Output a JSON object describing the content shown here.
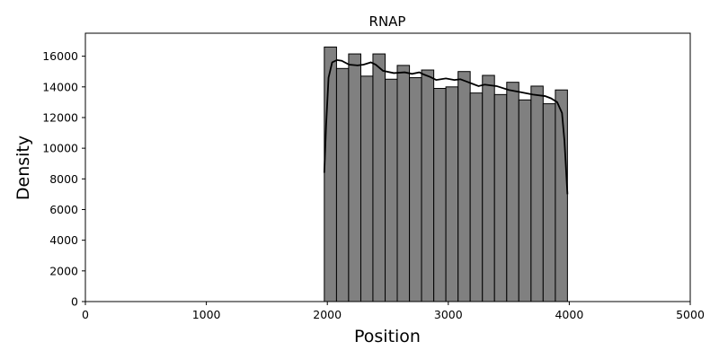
{
  "chart_data": {
    "type": "bar",
    "title": "RNAP",
    "xlabel": "Position",
    "ylabel": "Density",
    "xlim": [
      0,
      5000
    ],
    "ylim": [
      0,
      17500
    ],
    "xticks": [
      0,
      1000,
      2000,
      3000,
      4000,
      5000
    ],
    "yticks": [
      0,
      2000,
      4000,
      6000,
      8000,
      10000,
      12000,
      14000,
      16000
    ],
    "grid": false,
    "bar_color": "#808080",
    "edge_color": "#000000",
    "kde_color": "#000000",
    "bins": [
      {
        "x0": 1975,
        "x1": 2076,
        "value": 16600
      },
      {
        "x0": 2076,
        "x1": 2176,
        "value": 15200
      },
      {
        "x0": 2176,
        "x1": 2277,
        "value": 16150
      },
      {
        "x0": 2277,
        "x1": 2377,
        "value": 14700
      },
      {
        "x0": 2377,
        "x1": 2478,
        "value": 16150
      },
      {
        "x0": 2478,
        "x1": 2578,
        "value": 14500
      },
      {
        "x0": 2578,
        "x1": 2679,
        "value": 15400
      },
      {
        "x0": 2679,
        "x1": 2779,
        "value": 14600
      },
      {
        "x0": 2779,
        "x1": 2880,
        "value": 15100
      },
      {
        "x0": 2880,
        "x1": 2980,
        "value": 13900
      },
      {
        "x0": 2980,
        "x1": 3081,
        "value": 14000
      },
      {
        "x0": 3081,
        "x1": 3181,
        "value": 15000
      },
      {
        "x0": 3181,
        "x1": 3282,
        "value": 13600
      },
      {
        "x0": 3282,
        "x1": 3382,
        "value": 14750
      },
      {
        "x0": 3382,
        "x1": 3483,
        "value": 13500
      },
      {
        "x0": 3483,
        "x1": 3583,
        "value": 14300
      },
      {
        "x0": 3583,
        "x1": 3684,
        "value": 13150
      },
      {
        "x0": 3684,
        "x1": 3784,
        "value": 14050
      },
      {
        "x0": 3784,
        "x1": 3885,
        "value": 12900
      },
      {
        "x0": 3885,
        "x1": 3985,
        "value": 13800
      }
    ],
    "kde": {
      "x": [
        1975,
        1990,
        2010,
        2040,
        2080,
        2120,
        2180,
        2250,
        2300,
        2360,
        2400,
        2460,
        2550,
        2640,
        2700,
        2760,
        2800,
        2850,
        2900,
        2980,
        3050,
        3100,
        3150,
        3200,
        3250,
        3300,
        3400,
        3500,
        3600,
        3700,
        3800,
        3850,
        3900,
        3940,
        3960,
        3985
      ],
      "y": [
        8400,
        11500,
        14600,
        15600,
        15750,
        15700,
        15450,
        15400,
        15450,
        15600,
        15450,
        15050,
        14900,
        14950,
        14850,
        14950,
        14800,
        14650,
        14450,
        14550,
        14450,
        14500,
        14350,
        14200,
        14050,
        14150,
        14050,
        13800,
        13650,
        13500,
        13400,
        13250,
        13000,
        12300,
        10500,
        7000
      ]
    }
  }
}
